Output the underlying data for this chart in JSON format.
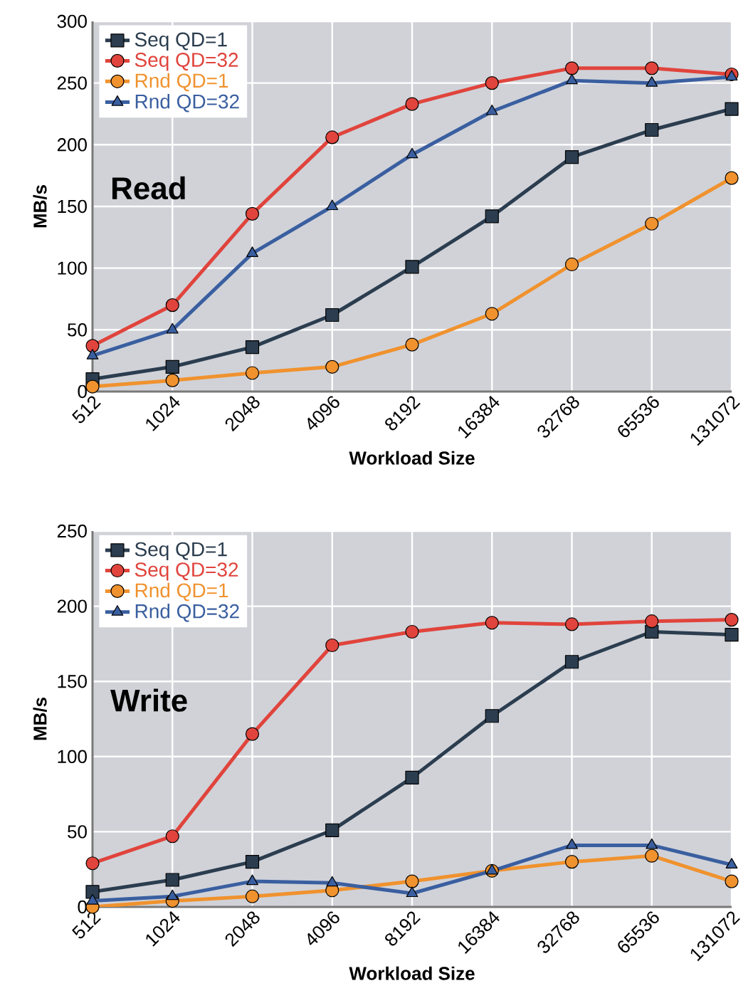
{
  "chart_data": [
    {
      "type": "line",
      "xlabel": "Workload Size",
      "ylabel": "MB/s",
      "annotations": [
        "Read"
      ],
      "categories": [
        "512",
        "1024",
        "2048",
        "4096",
        "8192",
        "16384",
        "32768",
        "65536",
        "131072"
      ],
      "ylim": [
        0,
        300
      ],
      "yticks": [
        0,
        50,
        100,
        150,
        200,
        250,
        300
      ],
      "grid": true,
      "legend": "top left",
      "series": [
        {
          "name": "Seq QD=1",
          "color": "#2b3d4f",
          "marker": "square",
          "values": [
            10,
            20,
            36,
            62,
            101,
            142,
            190,
            212,
            229
          ]
        },
        {
          "name": "Seq QD=32",
          "color": "#e0443c",
          "marker": "circle",
          "values": [
            37,
            70,
            144,
            206,
            233,
            250,
            262,
            262,
            257
          ]
        },
        {
          "name": "Rnd QD=1",
          "color": "#f0922e",
          "marker": "circle",
          "values": [
            4,
            9,
            15,
            20,
            38,
            63,
            103,
            136,
            173
          ]
        },
        {
          "name": "Rnd QD=32",
          "color": "#3a5fa0",
          "marker": "triangle",
          "values": [
            29,
            50,
            112,
            150,
            192,
            227,
            252,
            250,
            255
          ]
        }
      ]
    },
    {
      "type": "line",
      "xlabel": "Workload Size",
      "ylabel": "MB/s",
      "annotations": [
        "Write"
      ],
      "categories": [
        "512",
        "1024",
        "2048",
        "4096",
        "8192",
        "16384",
        "32768",
        "65536",
        "131072"
      ],
      "ylim": [
        0,
        250
      ],
      "yticks": [
        0,
        50,
        100,
        150,
        200,
        250
      ],
      "grid": true,
      "legend": "top left",
      "series": [
        {
          "name": "Seq QD=1",
          "color": "#2b3d4f",
          "marker": "square",
          "values": [
            10,
            18,
            30,
            51,
            86,
            127,
            163,
            183,
            181
          ]
        },
        {
          "name": "Seq QD=32",
          "color": "#e0443c",
          "marker": "circle",
          "values": [
            29,
            47,
            115,
            174,
            183,
            189,
            188,
            190,
            191
          ]
        },
        {
          "name": "Rnd QD=1",
          "color": "#f0922e",
          "marker": "circle",
          "values": [
            0,
            4,
            7,
            11,
            17,
            24,
            30,
            34,
            17
          ]
        },
        {
          "name": "Rnd QD=32",
          "color": "#3a5fa0",
          "marker": "triangle",
          "values": [
            4,
            7,
            17,
            16,
            9,
            24,
            41,
            41,
            28
          ]
        }
      ]
    }
  ]
}
